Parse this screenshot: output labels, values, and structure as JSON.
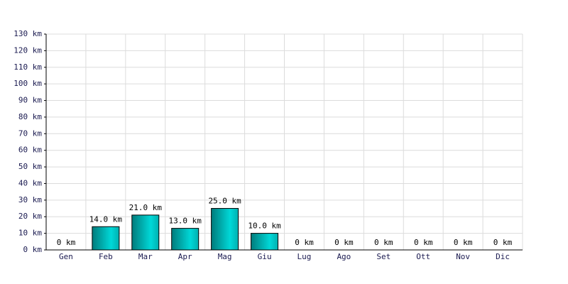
{
  "chart_data": {
    "type": "bar",
    "categories": [
      "Gen",
      "Feb",
      "Mar",
      "Apr",
      "Mag",
      "Giu",
      "Lug",
      "Ago",
      "Set",
      "Ott",
      "Nov",
      "Dic"
    ],
    "values": [
      0,
      14,
      21,
      13,
      25,
      10,
      0,
      0,
      0,
      0,
      0,
      0
    ],
    "value_labels": [
      "0 km",
      "14.0 km",
      "21.0 km",
      "13.0 km",
      "25.0 km",
      "10.0 km",
      "0 km",
      "0 km",
      "0 km",
      "0 km",
      "0 km",
      "0 km"
    ],
    "color": "#00d8d8",
    "ylim": [
      0,
      130
    ],
    "yticks": [
      {
        "value": 0,
        "label": "0 km"
      },
      {
        "value": 10,
        "label": "10 km"
      },
      {
        "value": 20,
        "label": "20 km"
      },
      {
        "value": 30,
        "label": "30 km"
      },
      {
        "value": 40,
        "label": "40 km"
      },
      {
        "value": 50,
        "label": "50 km"
      },
      {
        "value": 60,
        "label": "60 km"
      },
      {
        "value": 70,
        "label": "70 km"
      },
      {
        "value": 80,
        "label": "80 km"
      },
      {
        "value": 90,
        "label": "90 km"
      },
      {
        "value": 100,
        "label": "100 km"
      },
      {
        "value": 110,
        "label": "110 km"
      },
      {
        "value": 120,
        "label": "120 km"
      },
      {
        "value": 130,
        "label": "130 km"
      }
    ],
    "grid": true
  }
}
